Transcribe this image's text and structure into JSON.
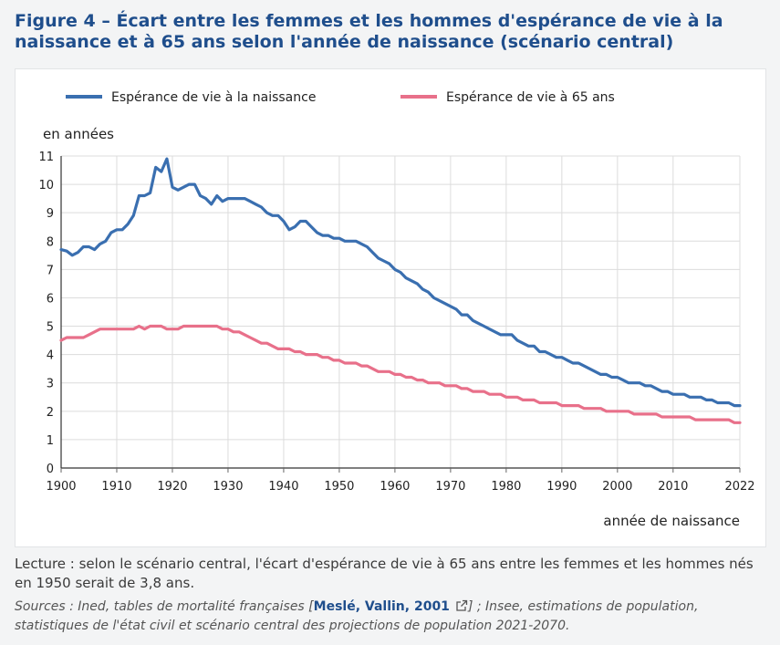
{
  "figure": {
    "title": "Figure 4 – Écart entre les femmes et les hommes d'espérance de vie à la naissance et à 65 ans selon l'année de naissance (scénario central)"
  },
  "notes": {
    "lecture": "Lecture : selon le scénario central, l'écart d'espérance de vie à 65 ans entre les femmes et les hommes nés en 1950 serait de 3,8 ans.",
    "sources_prefix": "Sources : Ined, tables de mortalité françaises [",
    "sources_link": "Meslé, Vallin, 2001",
    "sources_suffix": "] ; Insee, estimations de population, statistiques de l'état civil et scénario central des projections de population 2021-2070."
  },
  "chart_data": {
    "type": "line",
    "ylabel": "en années",
    "xlabel": "année de naissance",
    "xlim": [
      1900,
      2022
    ],
    "ylim": [
      0,
      11
    ],
    "x_ticks": [
      "1900",
      "1910",
      "1920",
      "1930",
      "1940",
      "1950",
      "1960",
      "1970",
      "1980",
      "1990",
      "2000",
      "2010",
      "2022"
    ],
    "y_ticks": [
      "0",
      "1",
      "2",
      "3",
      "4",
      "5",
      "6",
      "7",
      "8",
      "9",
      "10",
      "11"
    ],
    "grid": true,
    "legend_position": "top",
    "series": [
      {
        "name": "Espérance de vie à la naissance",
        "color": "#3a6fb0",
        "points": [
          [
            1900,
            7.7
          ],
          [
            1901,
            7.65
          ],
          [
            1902,
            7.5
          ],
          [
            1903,
            7.6
          ],
          [
            1904,
            7.8
          ],
          [
            1905,
            7.8
          ],
          [
            1906,
            7.7
          ],
          [
            1907,
            7.9
          ],
          [
            1908,
            8.0
          ],
          [
            1909,
            8.3
          ],
          [
            1910,
            8.4
          ],
          [
            1911,
            8.4
          ],
          [
            1912,
            8.6
          ],
          [
            1913,
            8.9
          ],
          [
            1914,
            9.6
          ],
          [
            1915,
            9.6
          ],
          [
            1916,
            9.7
          ],
          [
            1917,
            10.6
          ],
          [
            1918,
            10.45
          ],
          [
            1919,
            10.9
          ],
          [
            1920,
            9.9
          ],
          [
            1921,
            9.8
          ],
          [
            1922,
            9.9
          ],
          [
            1923,
            10.0
          ],
          [
            1924,
            10.0
          ],
          [
            1925,
            9.6
          ],
          [
            1926,
            9.5
          ],
          [
            1927,
            9.3
          ],
          [
            1928,
            9.6
          ],
          [
            1929,
            9.4
          ],
          [
            1930,
            9.5
          ],
          [
            1931,
            9.5
          ],
          [
            1932,
            9.5
          ],
          [
            1933,
            9.5
          ],
          [
            1934,
            9.4
          ],
          [
            1935,
            9.3
          ],
          [
            1936,
            9.2
          ],
          [
            1937,
            9.0
          ],
          [
            1938,
            8.9
          ],
          [
            1939,
            8.9
          ],
          [
            1940,
            8.7
          ],
          [
            1941,
            8.4
          ],
          [
            1942,
            8.5
          ],
          [
            1943,
            8.7
          ],
          [
            1944,
            8.7
          ],
          [
            1945,
            8.5
          ],
          [
            1946,
            8.3
          ],
          [
            1947,
            8.2
          ],
          [
            1948,
            8.2
          ],
          [
            1949,
            8.1
          ],
          [
            1950,
            8.1
          ],
          [
            1951,
            8.0
          ],
          [
            1952,
            8.0
          ],
          [
            1953,
            8.0
          ],
          [
            1954,
            7.9
          ],
          [
            1955,
            7.8
          ],
          [
            1956,
            7.6
          ],
          [
            1957,
            7.4
          ],
          [
            1958,
            7.3
          ],
          [
            1959,
            7.2
          ],
          [
            1960,
            7.0
          ],
          [
            1961,
            6.9
          ],
          [
            1962,
            6.7
          ],
          [
            1963,
            6.6
          ],
          [
            1964,
            6.5
          ],
          [
            1965,
            6.3
          ],
          [
            1966,
            6.2
          ],
          [
            1967,
            6.0
          ],
          [
            1968,
            5.9
          ],
          [
            1969,
            5.8
          ],
          [
            1970,
            5.7
          ],
          [
            1971,
            5.6
          ],
          [
            1972,
            5.4
          ],
          [
            1973,
            5.4
          ],
          [
            1974,
            5.2
          ],
          [
            1975,
            5.1
          ],
          [
            1976,
            5.0
          ],
          [
            1977,
            4.9
          ],
          [
            1978,
            4.8
          ],
          [
            1979,
            4.7
          ],
          [
            1980,
            4.7
          ],
          [
            1981,
            4.7
          ],
          [
            1982,
            4.5
          ],
          [
            1983,
            4.4
          ],
          [
            1984,
            4.3
          ],
          [
            1985,
            4.3
          ],
          [
            1986,
            4.1
          ],
          [
            1987,
            4.1
          ],
          [
            1988,
            4.0
          ],
          [
            1989,
            3.9
          ],
          [
            1990,
            3.9
          ],
          [
            1991,
            3.8
          ],
          [
            1992,
            3.7
          ],
          [
            1993,
            3.7
          ],
          [
            1994,
            3.6
          ],
          [
            1995,
            3.5
          ],
          [
            1996,
            3.4
          ],
          [
            1997,
            3.3
          ],
          [
            1998,
            3.3
          ],
          [
            1999,
            3.2
          ],
          [
            2000,
            3.2
          ],
          [
            2001,
            3.1
          ],
          [
            2002,
            3.0
          ],
          [
            2003,
            3.0
          ],
          [
            2004,
            3.0
          ],
          [
            2005,
            2.9
          ],
          [
            2006,
            2.9
          ],
          [
            2007,
            2.8
          ],
          [
            2008,
            2.7
          ],
          [
            2009,
            2.7
          ],
          [
            2010,
            2.6
          ],
          [
            2011,
            2.6
          ],
          [
            2012,
            2.6
          ],
          [
            2013,
            2.5
          ],
          [
            2014,
            2.5
          ],
          [
            2015,
            2.5
          ],
          [
            2016,
            2.4
          ],
          [
            2017,
            2.4
          ],
          [
            2018,
            2.3
          ],
          [
            2019,
            2.3
          ],
          [
            2020,
            2.3
          ],
          [
            2021,
            2.2
          ],
          [
            2022,
            2.2
          ]
        ]
      },
      {
        "name": "Espérance de vie à 65 ans",
        "color": "#e8708a",
        "points": [
          [
            1900,
            4.5
          ],
          [
            1901,
            4.6
          ],
          [
            1902,
            4.6
          ],
          [
            1903,
            4.6
          ],
          [
            1904,
            4.6
          ],
          [
            1905,
            4.7
          ],
          [
            1906,
            4.8
          ],
          [
            1907,
            4.9
          ],
          [
            1908,
            4.9
          ],
          [
            1909,
            4.9
          ],
          [
            1910,
            4.9
          ],
          [
            1911,
            4.9
          ],
          [
            1912,
            4.9
          ],
          [
            1913,
            4.9
          ],
          [
            1914,
            5.0
          ],
          [
            1915,
            4.9
          ],
          [
            1916,
            5.0
          ],
          [
            1917,
            5.0
          ],
          [
            1918,
            5.0
          ],
          [
            1919,
            4.9
          ],
          [
            1920,
            4.9
          ],
          [
            1921,
            4.9
          ],
          [
            1922,
            5.0
          ],
          [
            1923,
            5.0
          ],
          [
            1924,
            5.0
          ],
          [
            1925,
            5.0
          ],
          [
            1926,
            5.0
          ],
          [
            1927,
            5.0
          ],
          [
            1928,
            5.0
          ],
          [
            1929,
            4.9
          ],
          [
            1930,
            4.9
          ],
          [
            1931,
            4.8
          ],
          [
            1932,
            4.8
          ],
          [
            1933,
            4.7
          ],
          [
            1934,
            4.6
          ],
          [
            1935,
            4.5
          ],
          [
            1936,
            4.4
          ],
          [
            1937,
            4.4
          ],
          [
            1938,
            4.3
          ],
          [
            1939,
            4.2
          ],
          [
            1940,
            4.2
          ],
          [
            1941,
            4.2
          ],
          [
            1942,
            4.1
          ],
          [
            1943,
            4.1
          ],
          [
            1944,
            4.0
          ],
          [
            1945,
            4.0
          ],
          [
            1946,
            4.0
          ],
          [
            1947,
            3.9
          ],
          [
            1948,
            3.9
          ],
          [
            1949,
            3.8
          ],
          [
            1950,
            3.8
          ],
          [
            1951,
            3.7
          ],
          [
            1952,
            3.7
          ],
          [
            1953,
            3.7
          ],
          [
            1954,
            3.6
          ],
          [
            1955,
            3.6
          ],
          [
            1956,
            3.5
          ],
          [
            1957,
            3.4
          ],
          [
            1958,
            3.4
          ],
          [
            1959,
            3.4
          ],
          [
            1960,
            3.3
          ],
          [
            1961,
            3.3
          ],
          [
            1962,
            3.2
          ],
          [
            1963,
            3.2
          ],
          [
            1964,
            3.1
          ],
          [
            1965,
            3.1
          ],
          [
            1966,
            3.0
          ],
          [
            1967,
            3.0
          ],
          [
            1968,
            3.0
          ],
          [
            1969,
            2.9
          ],
          [
            1970,
            2.9
          ],
          [
            1971,
            2.9
          ],
          [
            1972,
            2.8
          ],
          [
            1973,
            2.8
          ],
          [
            1974,
            2.7
          ],
          [
            1975,
            2.7
          ],
          [
            1976,
            2.7
          ],
          [
            1977,
            2.6
          ],
          [
            1978,
            2.6
          ],
          [
            1979,
            2.6
          ],
          [
            1980,
            2.5
          ],
          [
            1981,
            2.5
          ],
          [
            1982,
            2.5
          ],
          [
            1983,
            2.4
          ],
          [
            1984,
            2.4
          ],
          [
            1985,
            2.4
          ],
          [
            1986,
            2.3
          ],
          [
            1987,
            2.3
          ],
          [
            1988,
            2.3
          ],
          [
            1989,
            2.3
          ],
          [
            1990,
            2.2
          ],
          [
            1991,
            2.2
          ],
          [
            1992,
            2.2
          ],
          [
            1993,
            2.2
          ],
          [
            1994,
            2.1
          ],
          [
            1995,
            2.1
          ],
          [
            1996,
            2.1
          ],
          [
            1997,
            2.1
          ],
          [
            1998,
            2.0
          ],
          [
            1999,
            2.0
          ],
          [
            2000,
            2.0
          ],
          [
            2001,
            2.0
          ],
          [
            2002,
            2.0
          ],
          [
            2003,
            1.9
          ],
          [
            2004,
            1.9
          ],
          [
            2005,
            1.9
          ],
          [
            2006,
            1.9
          ],
          [
            2007,
            1.9
          ],
          [
            2008,
            1.8
          ],
          [
            2009,
            1.8
          ],
          [
            2010,
            1.8
          ],
          [
            2011,
            1.8
          ],
          [
            2012,
            1.8
          ],
          [
            2013,
            1.8
          ],
          [
            2014,
            1.7
          ],
          [
            2015,
            1.7
          ],
          [
            2016,
            1.7
          ],
          [
            2017,
            1.7
          ],
          [
            2018,
            1.7
          ],
          [
            2019,
            1.7
          ],
          [
            2020,
            1.7
          ],
          [
            2021,
            1.6
          ],
          [
            2022,
            1.6
          ]
        ]
      }
    ]
  }
}
